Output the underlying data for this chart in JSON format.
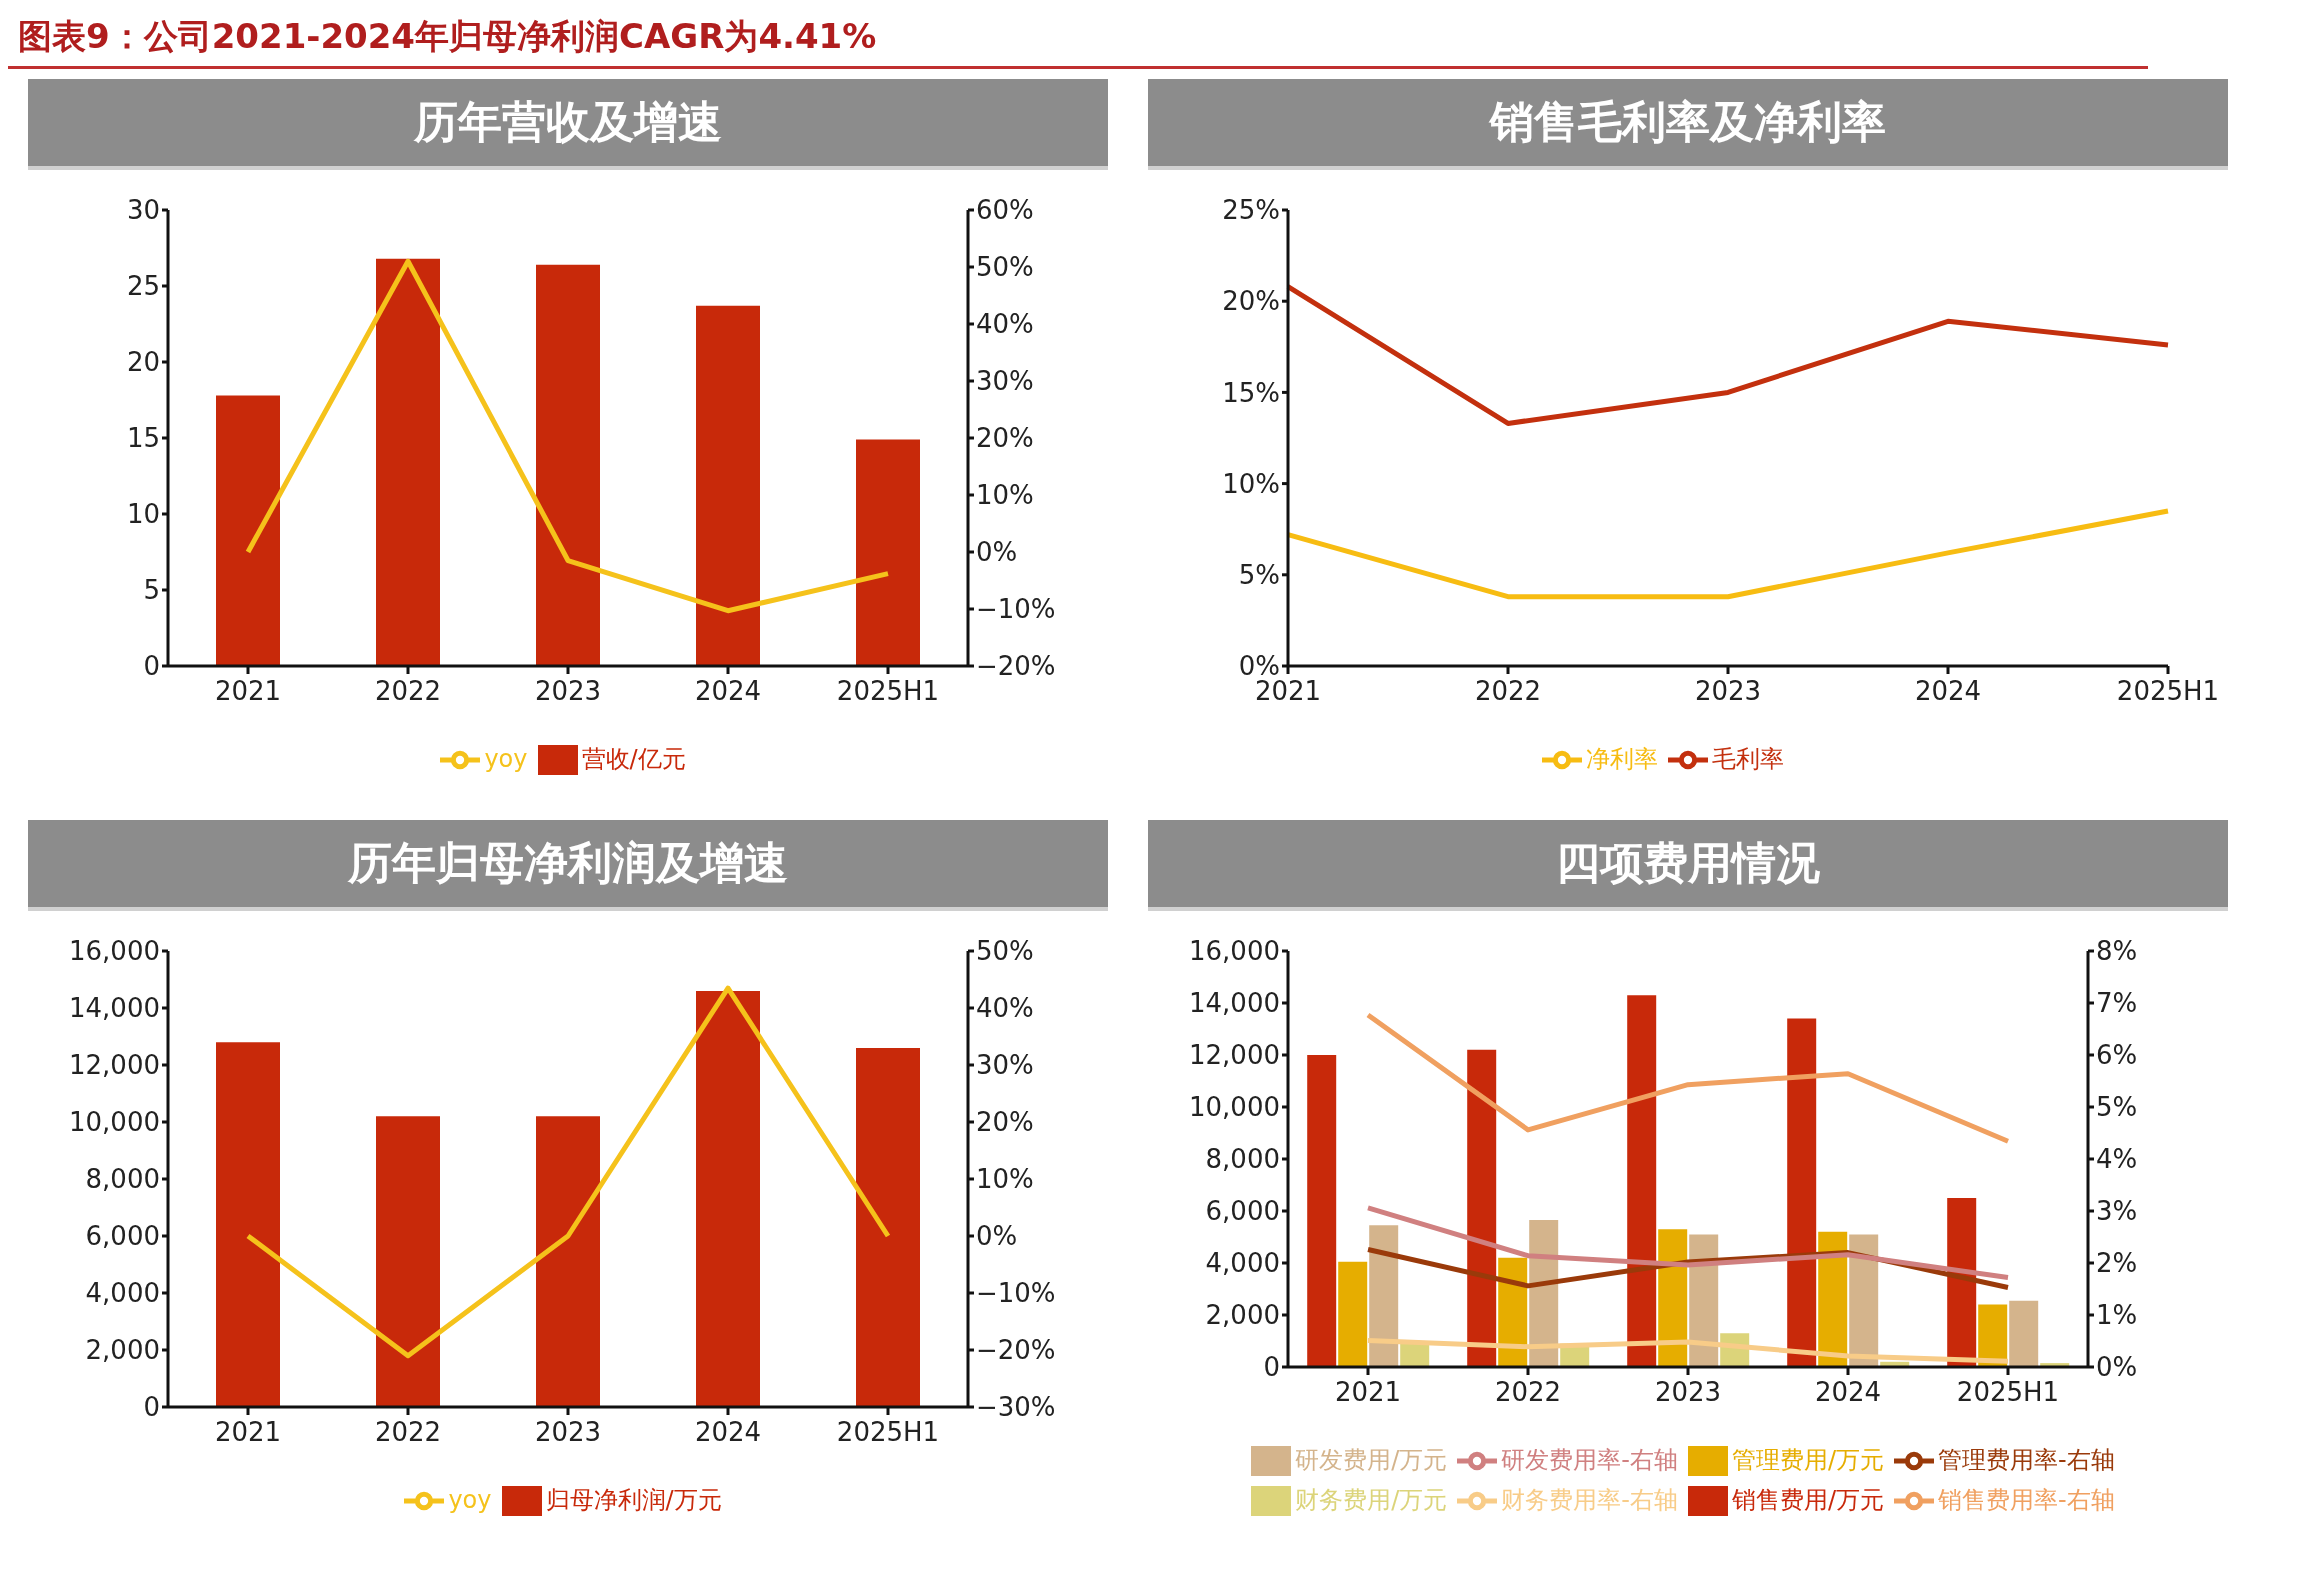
{
  "chart_data": [
    {
      "type": "other",
      "title": "图表9：公司2021-2024年归母净利润CAGR为4.41%"
    },
    {
      "type": "bar",
      "title": "历年营收及增速",
      "categories": [
        "2021",
        "2022",
        "2023",
        "2024",
        "2025H1"
      ],
      "marker": "none",
      "legend": "bottom",
      "ylim": [
        0,
        30
      ],
      "yticks": [
        0,
        5,
        10,
        15,
        20,
        25,
        30
      ],
      "y2lim": [
        -20,
        60
      ],
      "y2ticks": [
        {
          "value": -20,
          "label": "−20%"
        },
        {
          "value": -10,
          "label": "−10%"
        },
        {
          "value": 0,
          "label": "0%"
        },
        {
          "value": 10,
          "label": "10%"
        },
        {
          "value": 20,
          "label": "20%"
        },
        {
          "value": 30,
          "label": "30%"
        },
        {
          "value": 40,
          "label": "40%"
        },
        {
          "value": 50,
          "label": "50%"
        },
        {
          "value": 60,
          "label": "60%"
        }
      ],
      "series": [
        {
          "name": "营收/亿元",
          "type": "bar",
          "color": "#c8290a",
          "values": [
            17.8,
            26.8,
            26.4,
            23.7,
            14.9
          ]
        },
        {
          "name": "yoy",
          "type": "line",
          "axis": "y2",
          "color": "#f5c21b",
          "values": [
            0,
            51,
            -1.5,
            -10.3,
            -3.8
          ]
        }
      ]
    },
    {
      "type": "line",
      "title": "销售毛利率及净利率",
      "categories": [
        "2021",
        "2022",
        "2023",
        "2024",
        "2025H1"
      ],
      "marker": "none",
      "legend": "bottom",
      "ylim": [
        0,
        25
      ],
      "yticks": [
        {
          "value": 0,
          "label": "0%"
        },
        {
          "value": 5,
          "label": "5%"
        },
        {
          "value": 10,
          "label": "10%"
        },
        {
          "value": 15,
          "label": "15%"
        },
        {
          "value": 20,
          "label": "20%"
        },
        {
          "value": 25,
          "label": "25%"
        }
      ],
      "series": [
        {
          "name": "毛利率",
          "color": "#c3300e",
          "values": [
            20.8,
            13.3,
            15.0,
            18.9,
            17.6
          ]
        },
        {
          "name": "净利率",
          "color": "#f7bc12",
          "values": [
            7.2,
            3.8,
            3.8,
            6.2,
            8.5
          ]
        }
      ]
    },
    {
      "type": "bar",
      "title": "历年归母净利润及增速",
      "categories": [
        "2021",
        "2022",
        "2023",
        "2024",
        "2025H1"
      ],
      "marker": "none",
      "legend": "bottom",
      "ylim": [
        0,
        16000
      ],
      "yticks": [
        {
          "value": 0,
          "label": "0"
        },
        {
          "value": 2000,
          "label": "2,000"
        },
        {
          "value": 4000,
          "label": "4,000"
        },
        {
          "value": 6000,
          "label": "6,000"
        },
        {
          "value": 8000,
          "label": "8,000"
        },
        {
          "value": 10000,
          "label": "10,000"
        },
        {
          "value": 12000,
          "label": "12,000"
        },
        {
          "value": 14000,
          "label": "14,000"
        },
        {
          "value": 16000,
          "label": "16,000"
        }
      ],
      "y2lim": [
        -30,
        50
      ],
      "y2ticks": [
        {
          "value": -30,
          "label": "−30%"
        },
        {
          "value": -20,
          "label": "−20%"
        },
        {
          "value": -10,
          "label": "−10%"
        },
        {
          "value": 0,
          "label": "0%"
        },
        {
          "value": 10,
          "label": "10%"
        },
        {
          "value": 20,
          "label": "20%"
        },
        {
          "value": 30,
          "label": "30%"
        },
        {
          "value": 40,
          "label": "40%"
        },
        {
          "value": 50,
          "label": "50%"
        }
      ],
      "series": [
        {
          "name": "归母净利润/万元",
          "type": "bar",
          "color": "#c8290a",
          "values": [
            12800,
            10200,
            10200,
            14600,
            12600
          ]
        },
        {
          "name": "yoy",
          "type": "line",
          "axis": "y2",
          "color": "#f5c21b",
          "values": [
            0,
            -21,
            0,
            43.5,
            0
          ]
        }
      ]
    },
    {
      "type": "bar",
      "title": "四项费用情况",
      "categories": [
        "2021",
        "2022",
        "2023",
        "2024",
        "2025H1"
      ],
      "marker": "none",
      "legend": "bottom",
      "ylim": [
        0,
        16000
      ],
      "yticks": [
        {
          "value": 0,
          "label": "0"
        },
        {
          "value": 2000,
          "label": "2,000"
        },
        {
          "value": 4000,
          "label": "4,000"
        },
        {
          "value": 6000,
          "label": "6,000"
        },
        {
          "value": 8000,
          "label": "8,000"
        },
        {
          "value": 10000,
          "label": "10,000"
        },
        {
          "value": 12000,
          "label": "12,000"
        },
        {
          "value": 14000,
          "label": "14,000"
        },
        {
          "value": 16000,
          "label": "16,000"
        }
      ],
      "y2lim": [
        0,
        8
      ],
      "y2ticks": [
        {
          "value": 0,
          "label": "0%"
        },
        {
          "value": 1,
          "label": "1%"
        },
        {
          "value": 2,
          "label": "2%"
        },
        {
          "value": 3,
          "label": "3%"
        },
        {
          "value": 4,
          "label": "4%"
        },
        {
          "value": 5,
          "label": "5%"
        },
        {
          "value": 6,
          "label": "6%"
        },
        {
          "value": 7,
          "label": "7%"
        },
        {
          "value": 8,
          "label": "8%"
        }
      ],
      "series": [
        {
          "name": "销售费用/万元",
          "type": "bar",
          "color": "#c8290a",
          "values": [
            12000,
            12200,
            14300,
            13400,
            6500
          ]
        },
        {
          "name": "管理费用/万元",
          "type": "bar",
          "color": "#e6ad00",
          "values": [
            4050,
            4200,
            5300,
            5200,
            2400
          ]
        },
        {
          "name": "研发费用/万元",
          "type": "bar",
          "color": "#d4b48c",
          "values": [
            5450,
            5650,
            5100,
            5100,
            2550
          ]
        },
        {
          "name": "财务费用/万元",
          "type": "bar",
          "color": "#dcd47a",
          "values": [
            900,
            900,
            1300,
            200,
            150
          ]
        },
        {
          "name": "销售费用率-右轴",
          "type": "line",
          "axis": "y2",
          "color": "#f0a060",
          "values": [
            6.77,
            4.56,
            5.43,
            5.64,
            4.34
          ]
        },
        {
          "name": "管理费用率-右轴",
          "type": "line",
          "axis": "y2",
          "color": "#9a3a0a",
          "values": [
            2.26,
            1.56,
            2.02,
            2.2,
            1.53
          ]
        },
        {
          "name": "研发费用率-右轴",
          "type": "line",
          "axis": "y2",
          "color": "#d08080",
          "values": [
            3.06,
            2.14,
            1.96,
            2.16,
            1.72
          ]
        },
        {
          "name": "财务费用率-右轴",
          "type": "line",
          "axis": "y2",
          "color": "#f8cc88",
          "values": [
            0.51,
            0.39,
            0.48,
            0.21,
            0.11
          ]
        }
      ]
    }
  ]
}
